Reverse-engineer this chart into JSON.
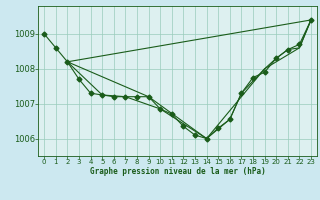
{
  "title": "Graphe pression niveau de la mer (hPa)",
  "background_color": "#cce8f0",
  "plot_bg_color": "#ddf0f0",
  "line_color": "#1a5c1a",
  "grid_color": "#99ccbb",
  "ylim": [
    1005.5,
    1009.8
  ],
  "xlim": [
    -0.5,
    23.5
  ],
  "yticks": [
    1006,
    1007,
    1008,
    1009
  ],
  "xticks": [
    0,
    1,
    2,
    3,
    4,
    5,
    6,
    7,
    8,
    9,
    10,
    11,
    12,
    13,
    14,
    15,
    16,
    17,
    18,
    19,
    20,
    21,
    22,
    23
  ],
  "curve1_x": [
    0,
    1,
    2,
    3,
    4,
    5,
    6,
    7,
    8,
    9,
    10,
    11,
    12,
    13,
    14,
    15,
    16,
    17,
    18,
    19,
    20,
    21,
    22,
    23
  ],
  "curve1_y": [
    1009.0,
    1008.6,
    1008.2,
    1007.7,
    1007.3,
    1007.25,
    1007.2,
    1007.2,
    1007.2,
    1007.2,
    1006.85,
    1006.7,
    1006.35,
    1006.1,
    1006.0,
    1006.3,
    1006.55,
    1007.3,
    1007.75,
    1007.9,
    1008.3,
    1008.55,
    1008.7,
    1009.4
  ],
  "curve2_x": [
    2,
    23
  ],
  "curve2_y": [
    1008.2,
    1009.4
  ],
  "curve3_x": [
    2,
    9,
    14,
    19,
    22,
    23
  ],
  "curve3_y": [
    1008.2,
    1007.2,
    1006.0,
    1008.0,
    1008.6,
    1009.4
  ],
  "curve4_x": [
    2,
    5,
    7,
    10,
    14,
    16,
    17,
    19,
    20,
    21,
    22,
    23
  ],
  "curve4_y": [
    1008.2,
    1007.25,
    1007.2,
    1006.85,
    1006.0,
    1006.55,
    1007.3,
    1008.0,
    1008.3,
    1008.55,
    1008.6,
    1009.4
  ],
  "tick_fontsize": 5,
  "xlabel_fontsize": 5.5,
  "ytick_fontsize": 6
}
